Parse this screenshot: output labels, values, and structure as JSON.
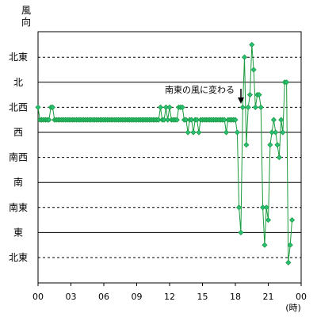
{
  "chart_data": {
    "type": "line",
    "title": "",
    "ylabel": "風向",
    "xlabel": "(時)",
    "y_categories": [
      "北東",
      "東",
      "南東",
      "南",
      "南西",
      "西",
      "北西",
      "北",
      "北東"
    ],
    "y_category_values": [
      1,
      2,
      3,
      4,
      5,
      6,
      7,
      8,
      9
    ],
    "x_ticks": [
      "00",
      "03",
      "06",
      "09",
      "12",
      "15",
      "18",
      "21",
      "00"
    ],
    "x_tick_values": [
      0,
      3,
      6,
      9,
      12,
      15,
      18,
      21,
      24
    ],
    "xlim": [
      0,
      24
    ],
    "ylim": [
      0.45,
      10
    ],
    "solid_gridlines": [
      2,
      4,
      6,
      8
    ],
    "dashed_gridlines": [
      1,
      3,
      5,
      7,
      9
    ],
    "annotation": {
      "text": "南東の風に変わる",
      "x": 19.0,
      "y": 6.7
    },
    "color": "#1a9a3c",
    "marker_color": "#28c07a",
    "series": [
      {
        "points": [
          [
            0.0,
            7.0
          ],
          [
            0.17,
            6.5
          ],
          [
            0.33,
            6.5
          ],
          [
            0.5,
            6.5
          ],
          [
            0.67,
            6.5
          ],
          [
            0.83,
            6.5
          ],
          [
            1.0,
            6.5
          ],
          [
            1.17,
            7.0
          ],
          [
            1.33,
            7.0
          ],
          [
            1.5,
            6.5
          ],
          [
            1.67,
            6.5
          ],
          [
            1.83,
            6.5
          ],
          [
            2.0,
            6.5
          ],
          [
            2.17,
            6.5
          ],
          [
            2.33,
            6.5
          ],
          [
            2.5,
            6.5
          ],
          [
            2.67,
            6.5
          ],
          [
            2.83,
            6.5
          ],
          [
            3.0,
            6.5
          ],
          [
            3.17,
            6.5
          ],
          [
            3.33,
            6.5
          ],
          [
            3.5,
            6.5
          ],
          [
            3.67,
            6.5
          ],
          [
            3.83,
            6.5
          ],
          [
            4.0,
            6.5
          ],
          [
            4.17,
            6.5
          ],
          [
            4.33,
            6.5
          ],
          [
            4.5,
            6.5
          ],
          [
            4.67,
            6.5
          ],
          [
            4.83,
            6.5
          ],
          [
            5.0,
            6.5
          ],
          [
            5.17,
            6.5
          ],
          [
            5.33,
            6.5
          ],
          [
            5.5,
            6.5
          ],
          [
            5.67,
            6.5
          ],
          [
            5.83,
            6.5
          ],
          [
            6.0,
            6.5
          ],
          [
            6.17,
            6.5
          ],
          [
            6.33,
            6.5
          ],
          [
            6.5,
            6.5
          ],
          [
            6.67,
            6.5
          ],
          [
            6.83,
            6.5
          ],
          [
            7.0,
            6.5
          ],
          [
            7.17,
            6.5
          ],
          [
            7.33,
            6.5
          ],
          [
            7.5,
            6.5
          ],
          [
            7.67,
            6.5
          ],
          [
            7.83,
            6.5
          ],
          [
            8.0,
            6.5
          ],
          [
            8.17,
            6.5
          ],
          [
            8.33,
            6.5
          ],
          [
            8.5,
            6.5
          ],
          [
            8.67,
            6.5
          ],
          [
            8.83,
            6.5
          ],
          [
            9.0,
            6.5
          ],
          [
            9.17,
            6.5
          ],
          [
            9.33,
            6.5
          ],
          [
            9.5,
            6.5
          ],
          [
            9.67,
            6.5
          ],
          [
            9.83,
            6.5
          ],
          [
            10.0,
            6.5
          ],
          [
            10.17,
            6.5
          ],
          [
            10.33,
            6.5
          ],
          [
            10.5,
            6.5
          ],
          [
            10.67,
            6.5
          ],
          [
            10.83,
            6.5
          ],
          [
            11.0,
            6.5
          ],
          [
            11.17,
            7.0
          ],
          [
            11.33,
            6.5
          ],
          [
            11.5,
            6.5
          ],
          [
            11.67,
            7.0
          ],
          [
            11.83,
            6.5
          ],
          [
            12.0,
            7.0
          ],
          [
            12.17,
            6.5
          ],
          [
            12.33,
            6.5
          ],
          [
            12.5,
            6.5
          ],
          [
            12.67,
            6.5
          ],
          [
            12.83,
            7.0
          ],
          [
            13.0,
            7.0
          ],
          [
            13.17,
            7.0
          ],
          [
            13.33,
            6.5
          ],
          [
            13.5,
            6.5
          ],
          [
            13.67,
            6.0
          ],
          [
            13.83,
            6.5
          ],
          [
            14.0,
            6.5
          ],
          [
            14.17,
            6.0
          ],
          [
            14.33,
            6.5
          ],
          [
            14.5,
            6.5
          ],
          [
            14.67,
            6.0
          ],
          [
            14.83,
            6.5
          ],
          [
            15.0,
            6.5
          ],
          [
            15.17,
            6.5
          ],
          [
            15.33,
            6.5
          ],
          [
            15.5,
            6.5
          ],
          [
            15.67,
            6.5
          ],
          [
            15.83,
            6.5
          ],
          [
            16.0,
            6.5
          ],
          [
            16.17,
            6.5
          ],
          [
            16.33,
            6.5
          ],
          [
            16.5,
            6.5
          ],
          [
            16.67,
            6.5
          ],
          [
            16.83,
            6.5
          ],
          [
            17.0,
            6.5
          ],
          [
            17.17,
            6.0
          ],
          [
            17.33,
            6.5
          ],
          [
            17.5,
            6.5
          ],
          [
            17.67,
            6.5
          ],
          [
            17.83,
            6.5
          ],
          [
            18.0,
            6.5
          ],
          [
            18.17,
            6.0
          ],
          [
            18.33,
            3.0
          ],
          [
            18.5,
            2.0
          ],
          [
            18.67,
            7.0
          ],
          [
            18.83,
            9.0
          ],
          [
            19.0,
            5.5
          ],
          [
            19.17,
            7.0
          ],
          [
            19.33,
            7.5
          ],
          [
            19.5,
            9.5
          ],
          [
            19.67,
            8.5
          ],
          [
            19.83,
            7.0
          ],
          [
            20.0,
            7.5
          ],
          [
            20.17,
            7.5
          ],
          [
            20.33,
            7.0
          ],
          [
            20.5,
            3.0
          ],
          [
            20.67,
            1.5
          ],
          [
            20.83,
            3.0
          ],
          [
            21.0,
            2.5
          ],
          [
            21.17,
            5.5
          ],
          [
            21.33,
            6.0
          ],
          [
            21.5,
            6.5
          ],
          [
            21.67,
            6.0
          ],
          [
            21.83,
            5.5
          ],
          [
            22.0,
            5.0
          ],
          [
            22.17,
            6.5
          ],
          [
            22.33,
            6.0
          ],
          [
            22.5,
            8.0
          ],
          [
            22.67,
            8.0
          ],
          [
            22.83,
            0.8
          ],
          [
            23.0,
            1.5
          ],
          [
            23.17,
            2.5
          ]
        ]
      }
    ]
  }
}
